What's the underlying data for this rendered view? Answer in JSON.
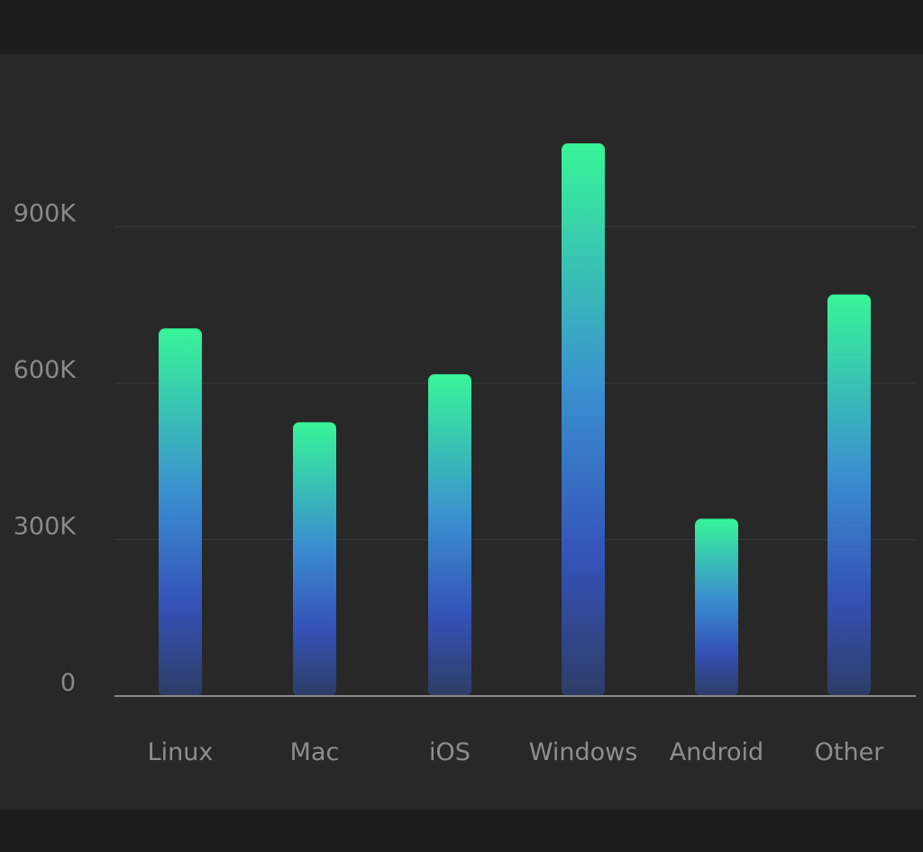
{
  "chart_data": {
    "type": "bar",
    "title": "",
    "xlabel": "",
    "ylabel": "",
    "categories": [
      "Linux",
      "Mac",
      "iOS",
      "Windows",
      "Android",
      "Other"
    ],
    "values": [
      705000,
      525000,
      617000,
      1060000,
      340000,
      770000
    ],
    "ylim": [
      0,
      1200000
    ],
    "yticks": [
      0,
      300000,
      600000,
      900000
    ],
    "ytick_labels": [
      "0",
      "300K",
      "600K",
      "900K"
    ],
    "grid": true,
    "legend": "none",
    "colors": {
      "bar_top": "#37f598",
      "bar_mid": "#3a8fd0",
      "bar_low": "#3452b8",
      "bar_bottom": "#2e3d66",
      "gridline": "#3a3a3a",
      "axis": "#8a8a8a"
    }
  }
}
